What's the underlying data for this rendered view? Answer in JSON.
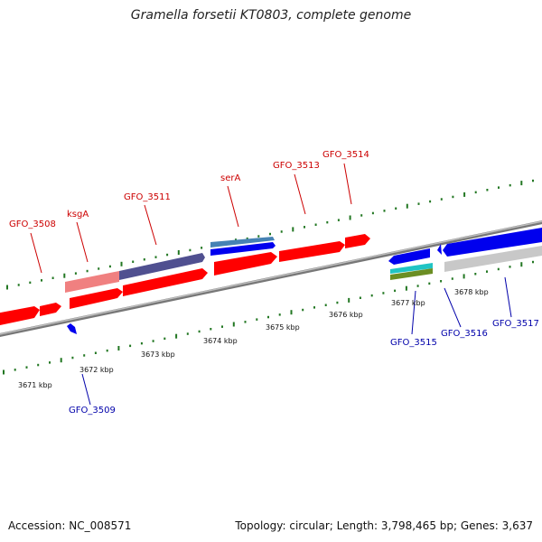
{
  "title": "Gramella forsetii KT0803, complete genome",
  "footer": {
    "accession": "Accession: NC_008571",
    "topology": "Topology: circular; Length: 3,798,465 bp; Genes: 3,637"
  },
  "colors": {
    "forward_gene": "#ff0000",
    "reverse_gene": "#0000ee",
    "forward_label": "#cc0000",
    "reverse_label": "#0000aa",
    "backbone": "#888888",
    "tick": "#227722"
  },
  "kbp_ticks": [
    "3671 kbp",
    "3672 kbp",
    "3673 kbp",
    "3674 kbp",
    "3675 kbp",
    "3676 kbp",
    "3677 kbp",
    "3678 kbp"
  ],
  "forward_labels": [
    "GFO_3508",
    "ksgA",
    "GFO_3511",
    "serA",
    "GFO_3513",
    "GFO_3514"
  ],
  "reverse_labels": [
    "GFO_3509",
    "GFO_3515",
    "GFO_3516",
    "GFO_3517"
  ]
}
